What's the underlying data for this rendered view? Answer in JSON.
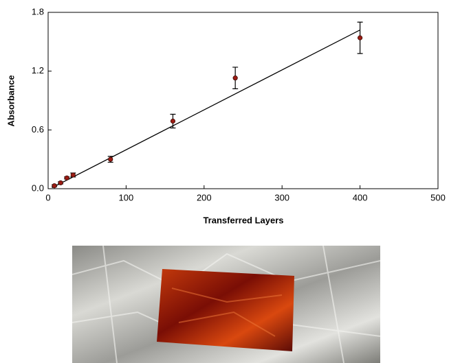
{
  "chart_data": {
    "type": "scatter",
    "x_label": "Transferred Layers",
    "y_label": "Absorbance",
    "xlim": [
      0,
      500
    ],
    "xticks": [
      0,
      100,
      200,
      300,
      400,
      500
    ],
    "ylim": [
      0,
      1.8
    ],
    "yticks": [
      {
        "value": 0,
        "label": "0.0"
      },
      0.6,
      1.2,
      1.8
    ],
    "series": [
      {
        "color": "#9b1c14",
        "x": [
          8,
          16,
          24,
          32,
          80,
          160,
          240,
          400
        ],
        "values": [
          0.03,
          0.06,
          0.11,
          0.14,
          0.3,
          0.69,
          1.13,
          1.54
        ],
        "errors": [
          0.01,
          0.01,
          0.01,
          0.02,
          0.03,
          0.07,
          0.11,
          0.16
        ]
      }
    ],
    "fit": {
      "color": "#000000",
      "x": [
        5,
        400
      ],
      "values": [
        0.01,
        1.62
      ]
    }
  }
}
